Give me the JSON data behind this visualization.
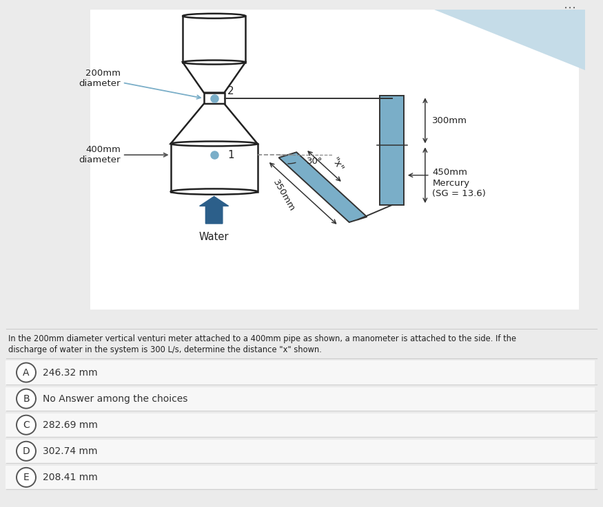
{
  "bg_color": "#ebebeb",
  "diagram_bg": "#ffffff",
  "blue_stroke": "#2c5f8a",
  "blue_fill": "#7aaec8",
  "light_blue_tri": "#c5dce8",
  "text_color": "#222222",
  "gray_line": "#aaaaaa",
  "choices": [
    {
      "label": "A",
      "text": "246.32 mm"
    },
    {
      "label": "B",
      "text": "No Answer among the choices"
    },
    {
      "label": "C",
      "text": "282.69 mm"
    },
    {
      "label": "D",
      "text": "302.74 mm"
    },
    {
      "label": "E",
      "text": "208.41 mm"
    }
  ],
  "problem_text_1": "In the 200mm diameter vertical venturi meter attached to a 400mm pipe as shown, a manometer is attached to the side. If the",
  "problem_text_2": "discharge of water in the system is 300 L/s, determine the distance \"x\" shown."
}
